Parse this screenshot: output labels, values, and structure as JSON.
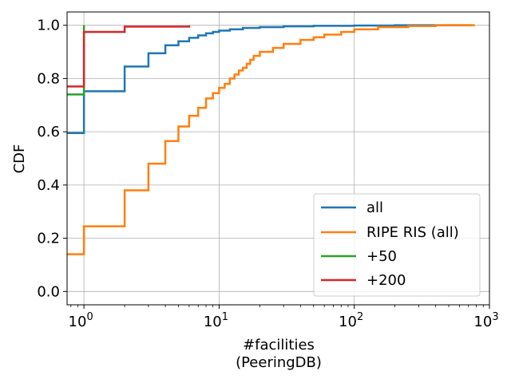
{
  "chart_data": {
    "type": "line",
    "title": "",
    "xlabel_line1": "#facilities",
    "xlabel_line2": "(PeeringDB)",
    "ylabel": "CDF",
    "xscale": "log",
    "xlim": [
      0.75,
      1000
    ],
    "ylim": [
      -0.05,
      1.05
    ],
    "grid": true,
    "legend_position": "lower-right",
    "x_ticks": [
      {
        "value": 1,
        "base": "10",
        "exp": "0"
      },
      {
        "value": 10,
        "base": "10",
        "exp": "1"
      },
      {
        "value": 100,
        "base": "10",
        "exp": "2"
      },
      {
        "value": 1000,
        "base": "10",
        "exp": "3"
      }
    ],
    "y_ticks": [
      {
        "value": 0.0,
        "label": "0.0"
      },
      {
        "value": 0.2,
        "label": "0.2"
      },
      {
        "value": 0.4,
        "label": "0.4"
      },
      {
        "value": 0.6,
        "label": "0.6"
      },
      {
        "value": 0.8,
        "label": "0.8"
      },
      {
        "value": 1.0,
        "label": "1.0"
      }
    ],
    "series": [
      {
        "name": "all",
        "color": "#1f77b4",
        "points": [
          [
            0.75,
            0.595
          ],
          [
            1,
            0.595
          ],
          [
            1,
            0.752
          ],
          [
            2,
            0.752
          ],
          [
            2,
            0.845
          ],
          [
            3,
            0.845
          ],
          [
            3,
            0.895
          ],
          [
            4,
            0.895
          ],
          [
            4,
            0.925
          ],
          [
            5,
            0.925
          ],
          [
            5,
            0.94
          ],
          [
            6,
            0.94
          ],
          [
            6,
            0.953
          ],
          [
            7,
            0.953
          ],
          [
            7,
            0.962
          ],
          [
            8,
            0.962
          ],
          [
            8,
            0.97
          ],
          [
            9,
            0.97
          ],
          [
            9,
            0.975
          ],
          [
            10,
            0.975
          ],
          [
            10,
            0.98
          ],
          [
            12,
            0.98
          ],
          [
            12,
            0.985
          ],
          [
            15,
            0.985
          ],
          [
            15,
            0.99
          ],
          [
            20,
            0.99
          ],
          [
            20,
            0.993
          ],
          [
            30,
            0.993
          ],
          [
            30,
            0.996
          ],
          [
            50,
            0.996
          ],
          [
            50,
            0.998
          ],
          [
            100,
            0.998
          ],
          [
            100,
            0.999
          ],
          [
            200,
            0.999
          ],
          [
            200,
            1.0
          ],
          [
            750,
            1.0
          ]
        ]
      },
      {
        "name": "RIPE RIS (all)",
        "color": "#ff7f0e",
        "points": [
          [
            0.75,
            0.14
          ],
          [
            1,
            0.14
          ],
          [
            1,
            0.245
          ],
          [
            2,
            0.245
          ],
          [
            2,
            0.38
          ],
          [
            3,
            0.38
          ],
          [
            3,
            0.48
          ],
          [
            4,
            0.48
          ],
          [
            4,
            0.565
          ],
          [
            5,
            0.565
          ],
          [
            5,
            0.62
          ],
          [
            6,
            0.62
          ],
          [
            6,
            0.66
          ],
          [
            7,
            0.66
          ],
          [
            7,
            0.69
          ],
          [
            8,
            0.69
          ],
          [
            8,
            0.725
          ],
          [
            9,
            0.725
          ],
          [
            9,
            0.745
          ],
          [
            10,
            0.745
          ],
          [
            10,
            0.765
          ],
          [
            11,
            0.765
          ],
          [
            11,
            0.78
          ],
          [
            12,
            0.78
          ],
          [
            12,
            0.8
          ],
          [
            13,
            0.8
          ],
          [
            13,
            0.815
          ],
          [
            14,
            0.815
          ],
          [
            14,
            0.83
          ],
          [
            15,
            0.83
          ],
          [
            15,
            0.84
          ],
          [
            16,
            0.84
          ],
          [
            16,
            0.855
          ],
          [
            17,
            0.855
          ],
          [
            17,
            0.87
          ],
          [
            18,
            0.87
          ],
          [
            18,
            0.885
          ],
          [
            20,
            0.885
          ],
          [
            20,
            0.9
          ],
          [
            25,
            0.9
          ],
          [
            25,
            0.915
          ],
          [
            30,
            0.915
          ],
          [
            30,
            0.93
          ],
          [
            40,
            0.93
          ],
          [
            40,
            0.945
          ],
          [
            50,
            0.945
          ],
          [
            50,
            0.955
          ],
          [
            60,
            0.955
          ],
          [
            60,
            0.965
          ],
          [
            80,
            0.965
          ],
          [
            80,
            0.975
          ],
          [
            100,
            0.975
          ],
          [
            100,
            0.985
          ],
          [
            150,
            0.985
          ],
          [
            150,
            0.993
          ],
          [
            250,
            0.993
          ],
          [
            250,
            0.997
          ],
          [
            400,
            0.997
          ],
          [
            400,
            1.0
          ],
          [
            780,
            1.0
          ]
        ]
      },
      {
        "name": "+50",
        "color": "#2ca02c",
        "points": [
          [
            0.75,
            0.74
          ],
          [
            1,
            0.74
          ],
          [
            1,
            1.0
          ]
        ]
      },
      {
        "name": "+200",
        "color": "#d62728",
        "points": [
          [
            0.75,
            0.77
          ],
          [
            1,
            0.77
          ],
          [
            1,
            0.975
          ],
          [
            2,
            0.975
          ],
          [
            2,
            0.995
          ],
          [
            6,
            0.995
          ],
          [
            6,
            1.0
          ]
        ]
      }
    ]
  }
}
